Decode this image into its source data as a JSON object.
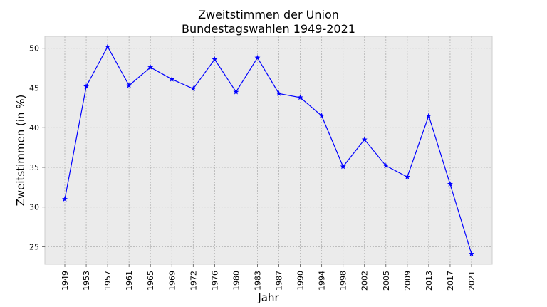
{
  "chart_data": {
    "type": "line",
    "title_line1": "Zweitstimmen der Union",
    "title_line2": "Bundestagswahlen 1949-2021",
    "xlabel": "Jahr",
    "ylabel": "Zweitstimmen (in %)",
    "categories": [
      "1949",
      "1953",
      "1957",
      "1961",
      "1965",
      "1969",
      "1972",
      "1976",
      "1980",
      "1983",
      "1987",
      "1990",
      "1994",
      "1998",
      "2002",
      "2005",
      "2009",
      "2013",
      "2017",
      "2021"
    ],
    "series": [
      {
        "values": [
          31.0,
          45.2,
          50.2,
          45.3,
          47.6,
          46.1,
          44.9,
          48.6,
          44.5,
          48.8,
          44.3,
          43.8,
          41.5,
          35.1,
          38.5,
          35.2,
          33.8,
          41.5,
          32.9,
          24.1
        ]
      }
    ],
    "ylim": [
      22.8,
      51.5
    ],
    "yticks": [
      25,
      30,
      35,
      40,
      45,
      50
    ],
    "grid": true,
    "marker": "star",
    "colors": {
      "line": "#0000ff",
      "plot_bg": "#ebebeb",
      "grid": "#b0b0b0",
      "spine": "#cccccc"
    }
  }
}
